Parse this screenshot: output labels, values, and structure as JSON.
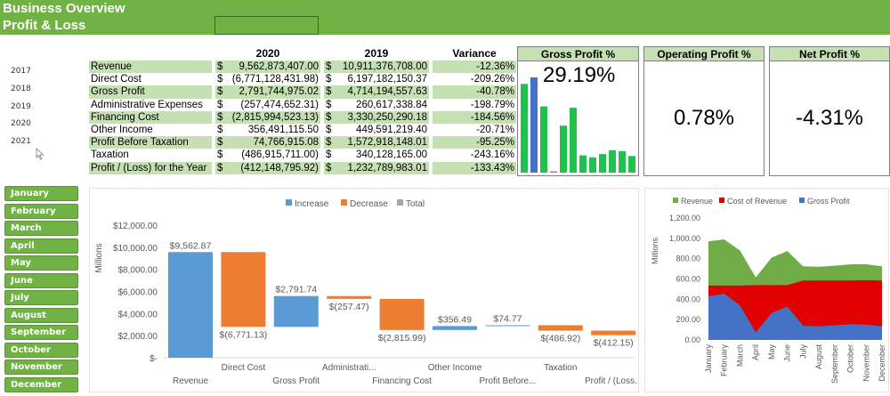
{
  "header": {
    "title": "Business Overview",
    "subtitle": "Profit & Loss",
    "accent": "#70b244"
  },
  "years": [
    "2017",
    "2018",
    "2019",
    "2020",
    "2021"
  ],
  "table": {
    "columns": [
      "2020",
      "2019",
      "Variance"
    ],
    "currency": "$",
    "rows": [
      {
        "label": "Revenue",
        "y2020": "9,562,873,407.00",
        "y2019": "10,911,376,708.00",
        "variance": "-12.36%"
      },
      {
        "label": "Direct Cost",
        "y2020": "(6,771,128,431.98)",
        "y2019": "6,197,182,150.37",
        "variance": "-209.26%"
      },
      {
        "label": "Gross Profit",
        "y2020": "2,791,744,975.02",
        "y2019": "4,714,194,557.63",
        "variance": "-40.78%"
      },
      {
        "label": "Administrative Expenses",
        "y2020": "(257,474,652.31)",
        "y2019": "260,617,338.84",
        "variance": "-198.79%"
      },
      {
        "label": "Financing Cost",
        "y2020": "(2,815,994,523.13)",
        "y2019": "3,330,250,290.18",
        "variance": "-184.56%"
      },
      {
        "label": "Other Income",
        "y2020": "356,491,115.50",
        "y2019": "449,591,219.40",
        "variance": "-20.71%"
      },
      {
        "label": "Profit Before Taxation",
        "y2020": "74,766,915.08",
        "y2019": "1,572,918,148.01",
        "variance": "-95.25%"
      },
      {
        "label": "Taxation",
        "y2020": "(486,915,711.00)",
        "y2019": "340,128,165.00",
        "variance": "-243.16%"
      },
      {
        "label": "Profit / (Loss) for the Year",
        "y2020": "(412,148,795.92)",
        "y2019": "1,232,789,983.01",
        "variance": "-133.43%"
      }
    ]
  },
  "kpis": {
    "gross": {
      "title": "Gross Profit %",
      "value": "29.19%"
    },
    "operating": {
      "title": "Operating Profit %",
      "value": "0.78%"
    },
    "net": {
      "title": "Net Profit %",
      "value": "-4.31%"
    }
  },
  "months": [
    "January",
    "February",
    "March",
    "April",
    "May",
    "June",
    "July",
    "August",
    "September",
    "October",
    "November",
    "December"
  ],
  "chart_data": [
    {
      "type": "bar",
      "title": "",
      "values": [
        27.2,
        29.2,
        20.3,
        -0.2,
        14.4,
        19.9,
        5.3,
        4.7,
        5.7,
        6.9,
        6.6,
        5.1
      ],
      "highlight_index": 1,
      "colors": {
        "normal": "#1fc24a",
        "highlight": "#4472c4",
        "negative": "#e06080"
      }
    },
    {
      "type": "waterfall",
      "legend": [
        "Increase",
        "Decrease",
        "Total"
      ],
      "legend_position": "top",
      "colors": {
        "Increase": "#5b9bd5",
        "Decrease": "#ed7d31",
        "Total": "#a5a5a5"
      },
      "ylabel": "Millions",
      "ylim": [
        0,
        12000
      ],
      "yticks": [
        "$-",
        "$2,000.00",
        "$4,000.00",
        "$6,000.00",
        "$8,000.00",
        "$10,000.00",
        "$12,000.00"
      ],
      "categories": [
        "Revenue",
        "Direct Cost",
        "Gross Profit",
        "Administrati...",
        "Financing Cost",
        "Other Income",
        "Profit Before...",
        "Taxation",
        "Profit / (Loss..."
      ],
      "values": [
        9562.87,
        -6771.13,
        2791.74,
        -257.47,
        -2815.99,
        356.49,
        74.77,
        -486.92,
        -412.15
      ],
      "labels": [
        "$9,562.87",
        "$(6,771.13)",
        "$2,791.74",
        "$(257.47)",
        "$(2,815.99)",
        "$356.49",
        "$74.77",
        "$(486.92)",
        "$(412.15)"
      ]
    },
    {
      "type": "area",
      "ylabel": "Millions",
      "ylim": [
        0,
        1200
      ],
      "yticks": [
        "0.00",
        "200.00",
        "400.00",
        "600.00",
        "800.00",
        "1,000.00",
        "1,200.00"
      ],
      "legend_position": "top",
      "categories": [
        "January",
        "February",
        "March",
        "April",
        "May",
        "June",
        "July",
        "August",
        "September",
        "October",
        "November",
        "December"
      ],
      "series": [
        {
          "name": "Revenue",
          "color": "#70ad47",
          "values": [
            970,
            990,
            880,
            615,
            810,
            875,
            725,
            720,
            730,
            745,
            745,
            725
          ]
        },
        {
          "name": "Cost of Revenue",
          "color": "#e00000",
          "values": [
            535,
            535,
            535,
            540,
            540,
            540,
            585,
            585,
            585,
            585,
            588,
            585
          ]
        },
        {
          "name": "Gross Profit",
          "color": "#4472c4",
          "values": [
            430,
            455,
            340,
            75,
            265,
            330,
            140,
            135,
            145,
            155,
            150,
            135
          ]
        }
      ]
    }
  ]
}
